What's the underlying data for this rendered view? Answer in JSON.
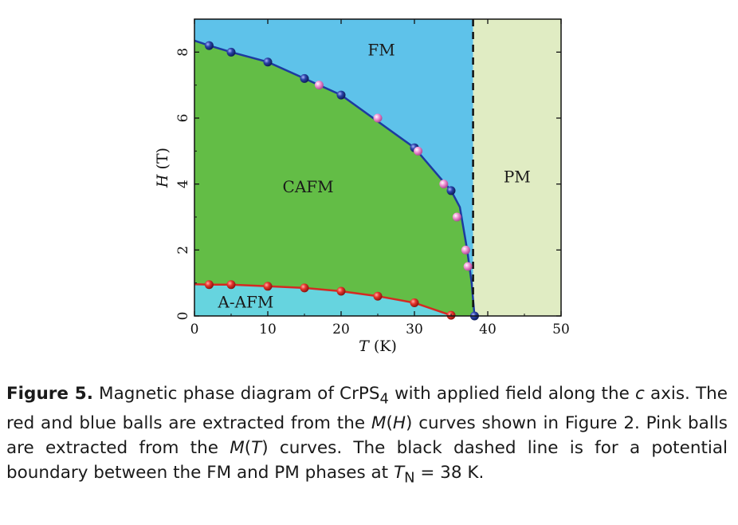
{
  "chart_data": {
    "type": "scatter",
    "xlabel": "T (K)",
    "ylabel": "H (T)",
    "xlim": [
      0,
      50
    ],
    "ylim": [
      0,
      9
    ],
    "xticks": [
      0,
      10,
      20,
      30,
      40,
      50
    ],
    "yticks": [
      0,
      2,
      4,
      6,
      8
    ],
    "grid": false,
    "regions": [
      {
        "name": "FM",
        "color": "#5ec2ea"
      },
      {
        "name": "CAFM",
        "color": "#63bd46"
      },
      {
        "name": "A-AFM",
        "color": "#66d4df"
      },
      {
        "name": "PM",
        "color": "#e0ecc3"
      }
    ],
    "boundary_TN": 38,
    "series": [
      {
        "marker_color": "#2a43a8",
        "points": [
          [
            2,
            8.2
          ],
          [
            5,
            8.0
          ],
          [
            10,
            7.7
          ],
          [
            15,
            7.2
          ],
          [
            20,
            6.7
          ],
          [
            30,
            5.1
          ],
          [
            35,
            3.8
          ],
          [
            38.2,
            0.0
          ]
        ]
      },
      {
        "marker_color": "#ef8fd2",
        "points": [
          [
            17,
            7.0
          ],
          [
            25,
            6.0
          ],
          [
            30.5,
            5.0
          ],
          [
            34,
            4.0
          ],
          [
            35.8,
            3.0
          ],
          [
            37,
            2.0
          ],
          [
            37.3,
            1.5
          ]
        ]
      },
      {
        "marker_color": "#e8342c",
        "points": [
          [
            2,
            0.95
          ],
          [
            5,
            0.95
          ],
          [
            10,
            0.9
          ],
          [
            15,
            0.85
          ],
          [
            20,
            0.75
          ],
          [
            25,
            0.6
          ],
          [
            30,
            0.4
          ],
          [
            35,
            0.02
          ]
        ]
      }
    ]
  },
  "caption": {
    "label": "Figure 5.",
    "part1": " Magnetic phase diagram of CrPS",
    "sub1": "4",
    "part2": " with applied field along the ",
    "c_axis": "c",
    "part3": " axis. The red and blue balls are extracted from the ",
    "mh": "M",
    "part4": "(",
    "h": "H",
    "part5": ") curves shown in Figure 2. Pink balls are extracted from the ",
    "mt": "M",
    "part6": "(",
    "t": "T",
    "part7": ") curves. The black dashed line is for a potential boundary between the FM and PM phases at ",
    "tn_T": "T",
    "tn_sub": "N",
    "part8": " = 38 K."
  }
}
